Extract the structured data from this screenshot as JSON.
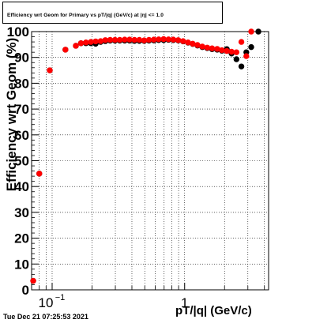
{
  "title": "Efficiency wrt Geom for Primary vs pT/|q| (GeV/c) at |η| <= 1.0",
  "timestamp": "Tue Dec 21 07:25:53 2021",
  "chart_data": {
    "type": "scatter",
    "xlabel": "pT/|q| (GeV/c)",
    "ylabel": "Efficiency wrt Geom (%)",
    "x_scale": "log",
    "xlim": [
      0.07,
      4.3
    ],
    "ylim": [
      0,
      100
    ],
    "y_ticks": [
      0,
      10,
      20,
      30,
      40,
      50,
      60,
      70,
      80,
      90,
      100
    ],
    "x_tick_labels": [
      {
        "value": 0.1,
        "base": "10",
        "exp": "−1"
      },
      {
        "value": 1,
        "base": "1",
        "exp": ""
      }
    ],
    "grid": true,
    "colors": {
      "black_series": "#000000",
      "red_series": "#ff0000"
    },
    "series": [
      {
        "color": "black",
        "points": [
          {
            "x": 0.072,
            "y": 3.5
          },
          {
            "x": 0.08,
            "y": 45
          },
          {
            "x": 0.096,
            "y": 85
          },
          {
            "x": 0.126,
            "y": 93
          },
          {
            "x": 0.151,
            "y": 94.5
          },
          {
            "x": 0.165,
            "y": 95.5
          },
          {
            "x": 0.18,
            "y": 95.5
          },
          {
            "x": 0.196,
            "y": 95.5
          },
          {
            "x": 0.213,
            "y": 95.3
          },
          {
            "x": 0.232,
            "y": 96
          },
          {
            "x": 0.252,
            "y": 96.3
          },
          {
            "x": 0.274,
            "y": 96.5
          },
          {
            "x": 0.298,
            "y": 96.5
          },
          {
            "x": 0.324,
            "y": 96.5
          },
          {
            "x": 0.353,
            "y": 96.5
          },
          {
            "x": 0.384,
            "y": 96.5
          },
          {
            "x": 0.418,
            "y": 96.4
          },
          {
            "x": 0.455,
            "y": 96.4
          },
          {
            "x": 0.495,
            "y": 96.4
          },
          {
            "x": 0.538,
            "y": 96.5
          },
          {
            "x": 0.586,
            "y": 96.6
          },
          {
            "x": 0.637,
            "y": 96.7
          },
          {
            "x": 0.694,
            "y": 96.7
          },
          {
            "x": 0.755,
            "y": 96.8
          },
          {
            "x": 0.821,
            "y": 96.7
          },
          {
            "x": 0.894,
            "y": 96.6
          },
          {
            "x": 0.973,
            "y": 96.2
          },
          {
            "x": 1.06,
            "y": 95.7
          },
          {
            "x": 1.15,
            "y": 95.2
          },
          {
            "x": 1.25,
            "y": 94.6
          },
          {
            "x": 1.36,
            "y": 94
          },
          {
            "x": 1.48,
            "y": 93.6
          },
          {
            "x": 1.61,
            "y": 93.2
          },
          {
            "x": 1.76,
            "y": 93
          },
          {
            "x": 1.91,
            "y": 92.6
          },
          {
            "x": 2.08,
            "y": 93.2
          },
          {
            "x": 2.26,
            "y": 91.5
          },
          {
            "x": 2.46,
            "y": 89.3
          },
          {
            "x": 2.68,
            "y": 86.5
          },
          {
            "x": 2.92,
            "y": 92
          },
          {
            "x": 3.18,
            "y": 94
          },
          {
            "x": 3.6,
            "y": 100
          }
        ]
      },
      {
        "color": "red",
        "points": [
          {
            "x": 0.072,
            "y": 3.5
          },
          {
            "x": 0.08,
            "y": 45
          },
          {
            "x": 0.096,
            "y": 85
          },
          {
            "x": 0.126,
            "y": 93
          },
          {
            "x": 0.151,
            "y": 94.5
          },
          {
            "x": 0.165,
            "y": 95.5
          },
          {
            "x": 0.18,
            "y": 95.8
          },
          {
            "x": 0.196,
            "y": 96
          },
          {
            "x": 0.213,
            "y": 96.2
          },
          {
            "x": 0.232,
            "y": 96.3
          },
          {
            "x": 0.252,
            "y": 96.7
          },
          {
            "x": 0.274,
            "y": 96.8
          },
          {
            "x": 0.298,
            "y": 96.8
          },
          {
            "x": 0.324,
            "y": 96.8
          },
          {
            "x": 0.353,
            "y": 96.9
          },
          {
            "x": 0.384,
            "y": 96.9
          },
          {
            "x": 0.418,
            "y": 96.8
          },
          {
            "x": 0.455,
            "y": 96.8
          },
          {
            "x": 0.495,
            "y": 96.6
          },
          {
            "x": 0.538,
            "y": 96.8
          },
          {
            "x": 0.586,
            "y": 96.9
          },
          {
            "x": 0.637,
            "y": 97
          },
          {
            "x": 0.694,
            "y": 97.1
          },
          {
            "x": 0.755,
            "y": 97
          },
          {
            "x": 0.821,
            "y": 96.9
          },
          {
            "x": 0.894,
            "y": 96.7
          },
          {
            "x": 0.973,
            "y": 96.3
          },
          {
            "x": 1.06,
            "y": 95.8
          },
          {
            "x": 1.15,
            "y": 95.3
          },
          {
            "x": 1.25,
            "y": 94.8
          },
          {
            "x": 1.36,
            "y": 94.2
          },
          {
            "x": 1.48,
            "y": 93.8
          },
          {
            "x": 1.61,
            "y": 93.5
          },
          {
            "x": 1.76,
            "y": 93.3
          },
          {
            "x": 1.91,
            "y": 92.8
          },
          {
            "x": 2.08,
            "y": 92.5
          },
          {
            "x": 2.26,
            "y": 92.2
          },
          {
            "x": 2.46,
            "y": 92
          },
          {
            "x": 2.68,
            "y": 96
          },
          {
            "x": 2.92,
            "y": 90.5
          },
          {
            "x": 3.18,
            "y": 100
          }
        ]
      }
    ]
  }
}
